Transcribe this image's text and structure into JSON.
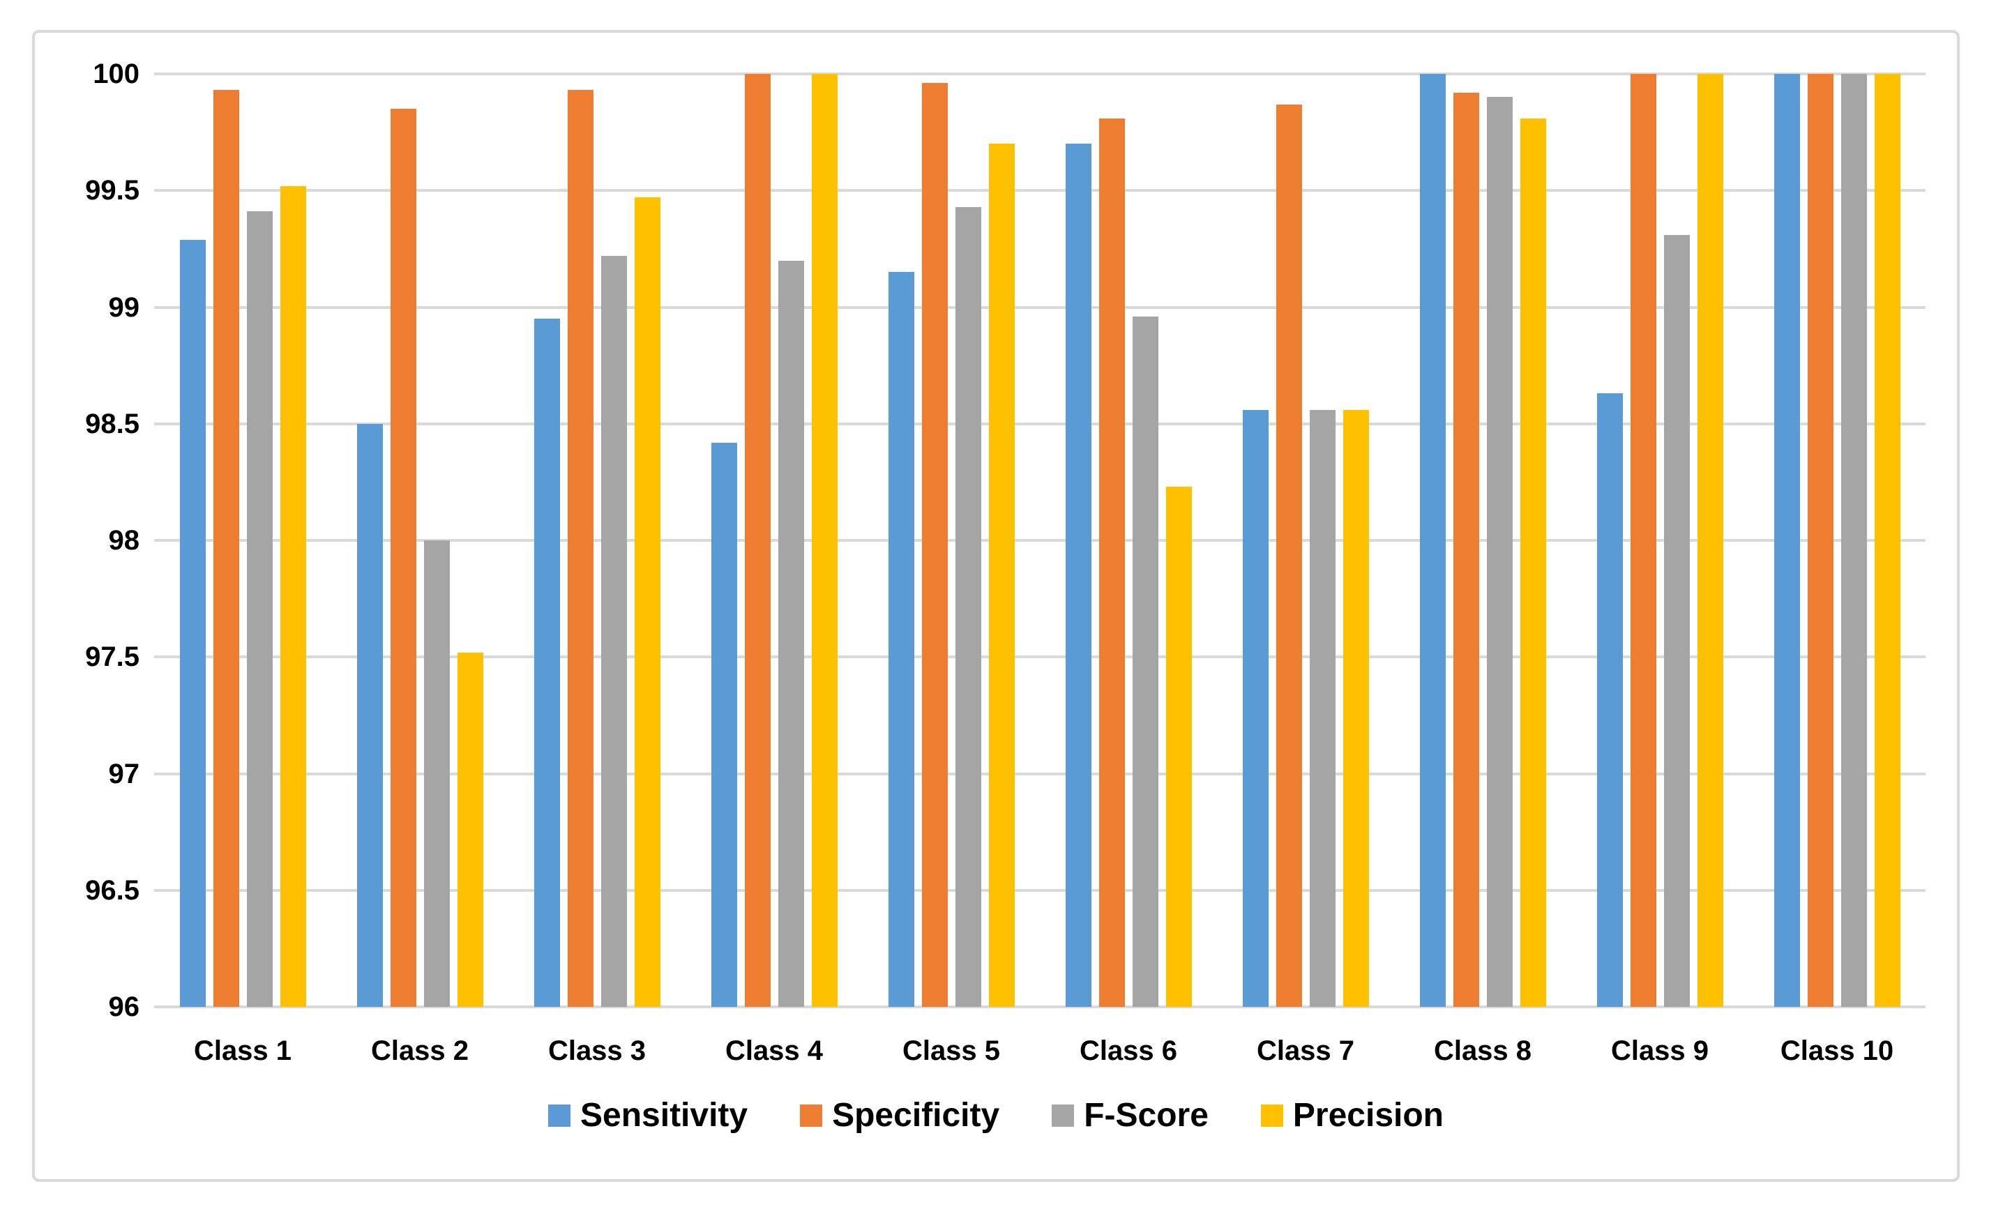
{
  "chart_data": {
    "type": "bar",
    "title": "",
    "categories": [
      "Class 1",
      "Class 2",
      "Class 3",
      "Class 4",
      "Class 5",
      "Class 6",
      "Class 7",
      "Class 8",
      "Class 9",
      "Class 10"
    ],
    "series": [
      {
        "name": "Sensitivity",
        "color": "#5B9BD5",
        "values": [
          99.29,
          98.5,
          98.95,
          98.42,
          99.15,
          99.7,
          98.56,
          100,
          98.63,
          100
        ]
      },
      {
        "name": "Specificity",
        "color": "#ED7D31",
        "values": [
          99.93,
          99.85,
          99.93,
          100,
          99.96,
          99.81,
          99.87,
          99.92,
          100,
          100
        ]
      },
      {
        "name": "F-Score",
        "color": "#A5A5A5",
        "values": [
          99.41,
          98.0,
          99.22,
          99.2,
          99.43,
          98.96,
          98.56,
          99.9,
          99.31,
          100
        ]
      },
      {
        "name": "Precision",
        "color": "#FFC000",
        "values": [
          99.52,
          97.52,
          99.47,
          100,
          99.7,
          98.23,
          98.56,
          99.81,
          100,
          100
        ]
      }
    ],
    "xlabel": "",
    "ylabel": "",
    "ylim": [
      96,
      100
    ],
    "ytick_step": 0.5,
    "ytick_labels": [
      "100",
      "99.5",
      "99",
      "98.5",
      "98",
      "97.5",
      "97",
      "96.5",
      "96"
    ],
    "grid": true,
    "gridline_color": "#D9D9D9",
    "frame_color": "#D9D9D9",
    "background": "#FFFFFF",
    "legend_position": "bottom"
  }
}
